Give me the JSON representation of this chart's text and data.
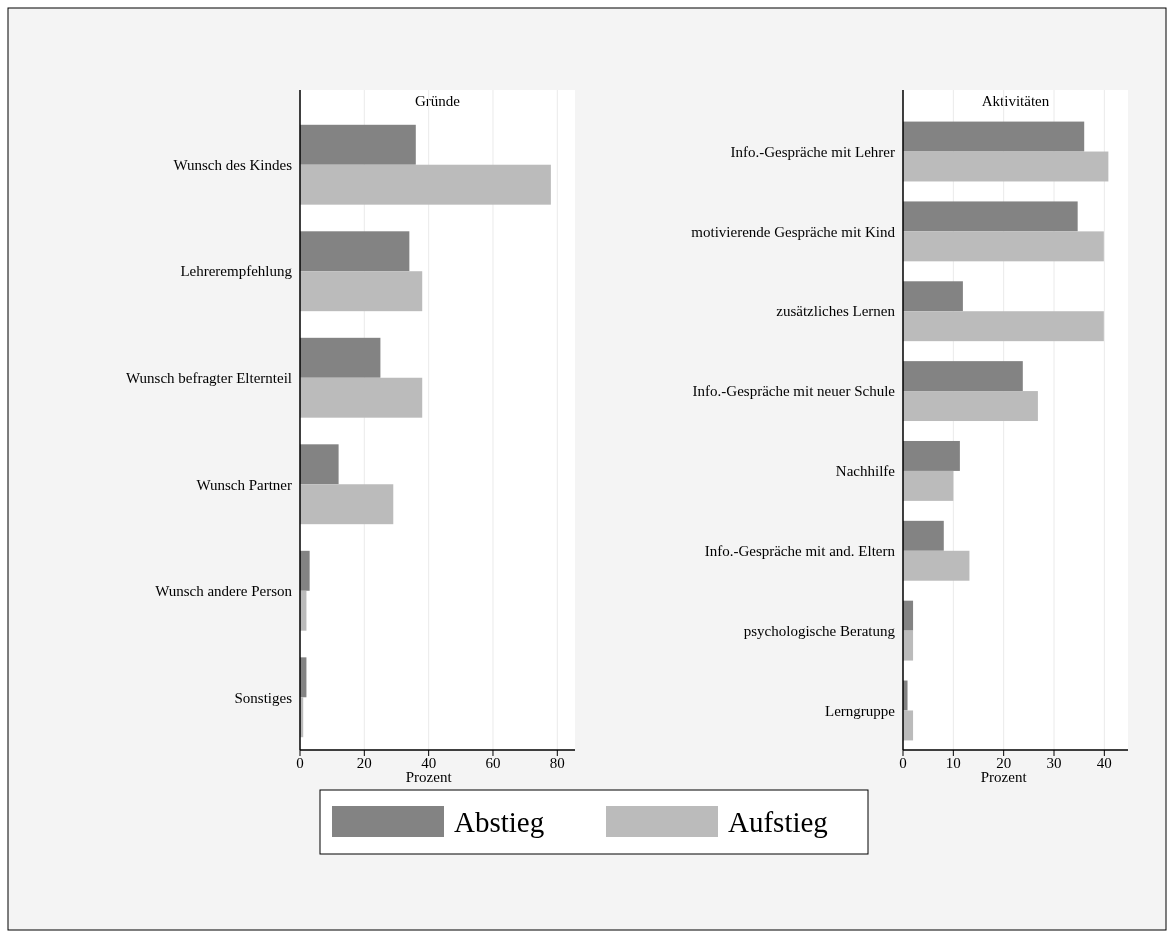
{
  "chart_data": [
    {
      "type": "bar",
      "orientation": "horizontal",
      "title": "Gründe",
      "xlabel": "Prozent",
      "categories": [
        "Wunsch des Kindes",
        "Lehrerempfehlung",
        "Wunsch befragter Elternteil",
        "Wunsch Partner",
        "Wunsch andere Person",
        "Sonstiges"
      ],
      "series": [
        {
          "name": "Abstieg",
          "color": "#838383",
          "values": [
            36,
            34,
            25,
            12,
            3,
            2
          ]
        },
        {
          "name": "Aufstieg",
          "color": "#bbbbbb",
          "values": [
            78,
            38,
            38,
            29,
            2,
            1
          ]
        }
      ],
      "xlim": [
        0,
        85.5
      ],
      "xticks": [
        0,
        20,
        40,
        60,
        80
      ],
      "grid": "x",
      "legend": "bottom"
    },
    {
      "type": "bar",
      "orientation": "horizontal",
      "title": "Aktivitäten",
      "xlabel": "Prozent",
      "categories": [
        "Info.-Gespräche mit Lehrer",
        "motivierende Gespräche mit Kind",
        "zusätzliches Lernen",
        "Info.-Gespräche mit neuer Schule",
        "Nachhilfe",
        "Info.-Gespräche mit and. Eltern",
        "psychologische Beratung",
        "Lerngruppe"
      ],
      "series": [
        {
          "color": "#838383",
          "values": [
            36,
            34.7,
            11.9,
            23.8,
            11.3,
            8.1,
            2,
            0.9
          ]
        },
        {
          "color": "#bbbbbb",
          "values": [
            40.8,
            39.9,
            39.9,
            26.8,
            10,
            13.2,
            2,
            2
          ]
        }
      ],
      "xlim": [
        0,
        44.7
      ],
      "xticks": [
        0,
        10,
        20,
        30,
        40
      ],
      "grid": "x"
    }
  ]
}
